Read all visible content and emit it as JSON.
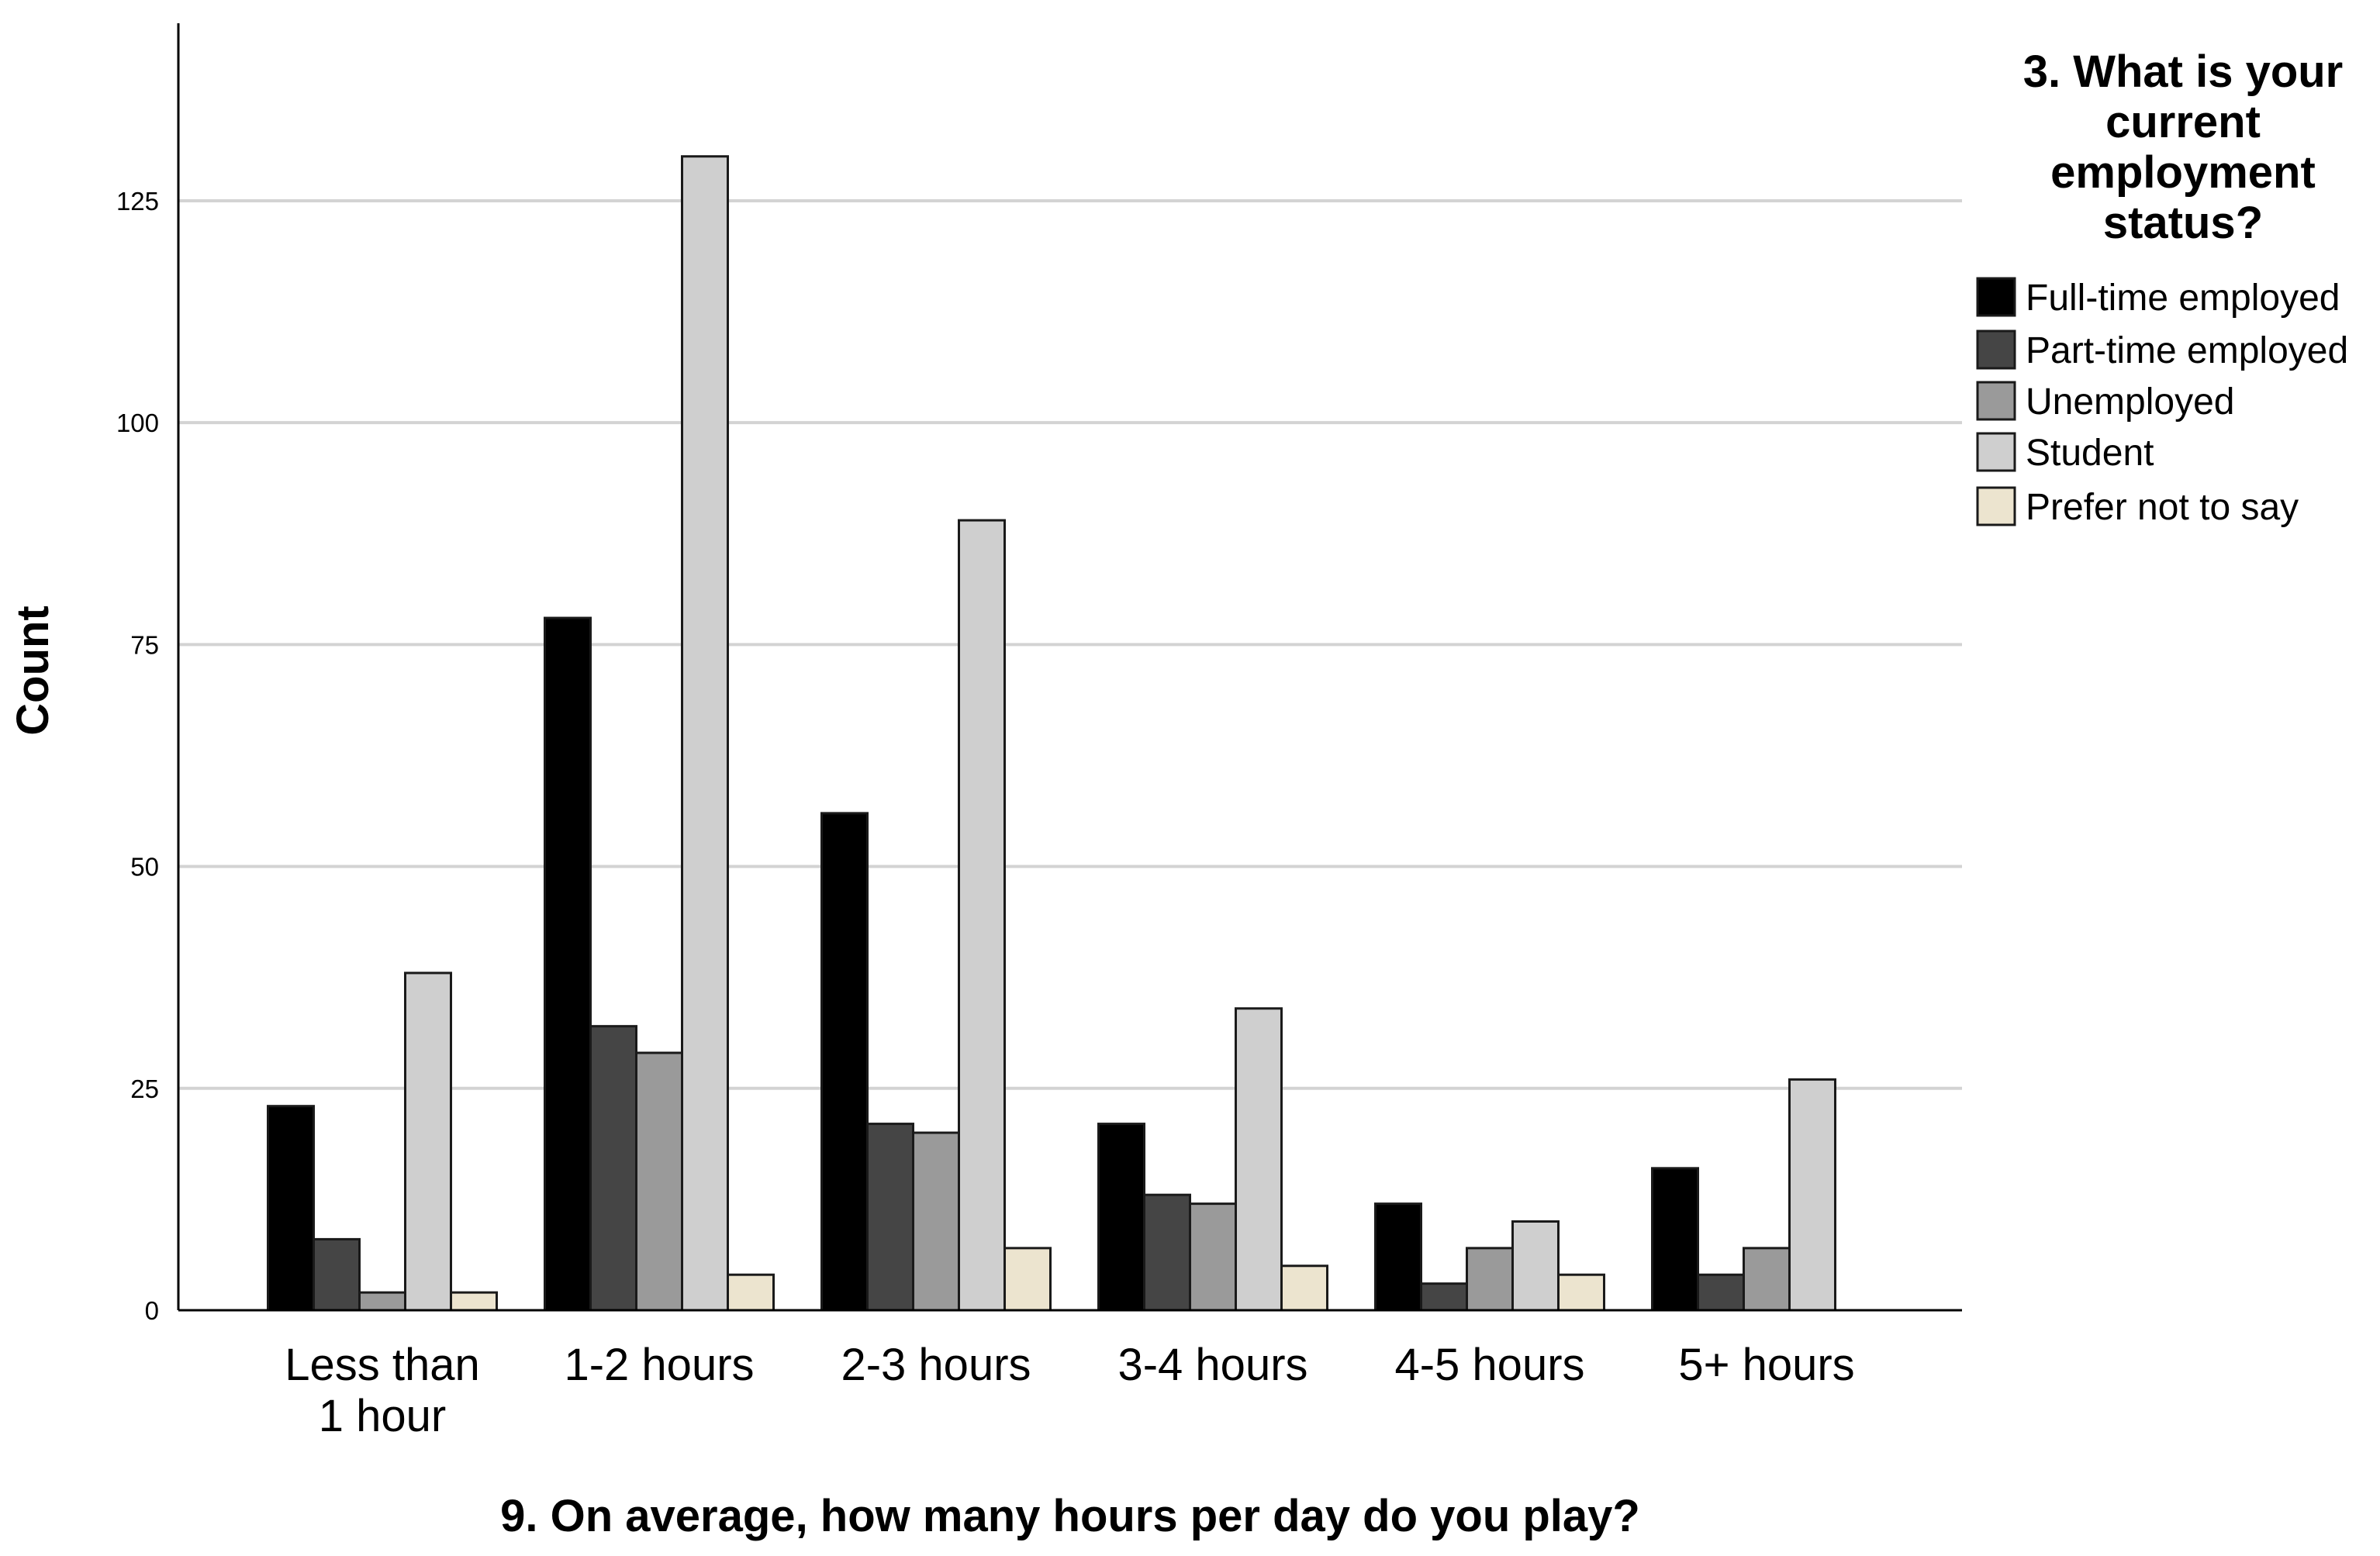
{
  "chart_data": {
    "type": "bar",
    "xlabel": "9. On average, how many hours per day do you play?",
    "ylabel": "Count",
    "legend_title": "3. What is your current employment status?",
    "legend_title_lines": [
      "3. What is your",
      "current",
      "employment",
      "status?"
    ],
    "legend_position": "top-right",
    "grid": true,
    "ylim": [
      0,
      145
    ],
    "yticks": [
      0,
      25,
      50,
      75,
      100,
      125
    ],
    "categories": [
      "Less than 1 hour",
      "1-2 hours",
      "2-3 hours",
      "3-4 hours",
      "4-5 hours",
      "5+ hours"
    ],
    "category_lines": [
      [
        "Less than",
        "1 hour"
      ],
      [
        "1-2 hours"
      ],
      [
        "2-3 hours"
      ],
      [
        "3-4 hours"
      ],
      [
        "4-5 hours"
      ],
      [
        "5+ hours"
      ]
    ],
    "series": [
      {
        "name": "Full-time employed",
        "color": "#000000",
        "values": [
          23,
          78,
          56,
          21,
          12,
          16
        ]
      },
      {
        "name": "Part-time employed",
        "color": "#454545",
        "values": [
          8,
          32,
          21,
          13,
          3,
          4
        ]
      },
      {
        "name": "Unemployed",
        "color": "#9a9a9a",
        "values": [
          2,
          29,
          20,
          12,
          7,
          7
        ]
      },
      {
        "name": "Student",
        "color": "#cfcfcf",
        "values": [
          38,
          130,
          89,
          34,
          10,
          26
        ]
      },
      {
        "name": "Prefer not to say",
        "color": "#ece4cf",
        "values": [
          2,
          4,
          7,
          5,
          4,
          0
        ]
      }
    ]
  }
}
